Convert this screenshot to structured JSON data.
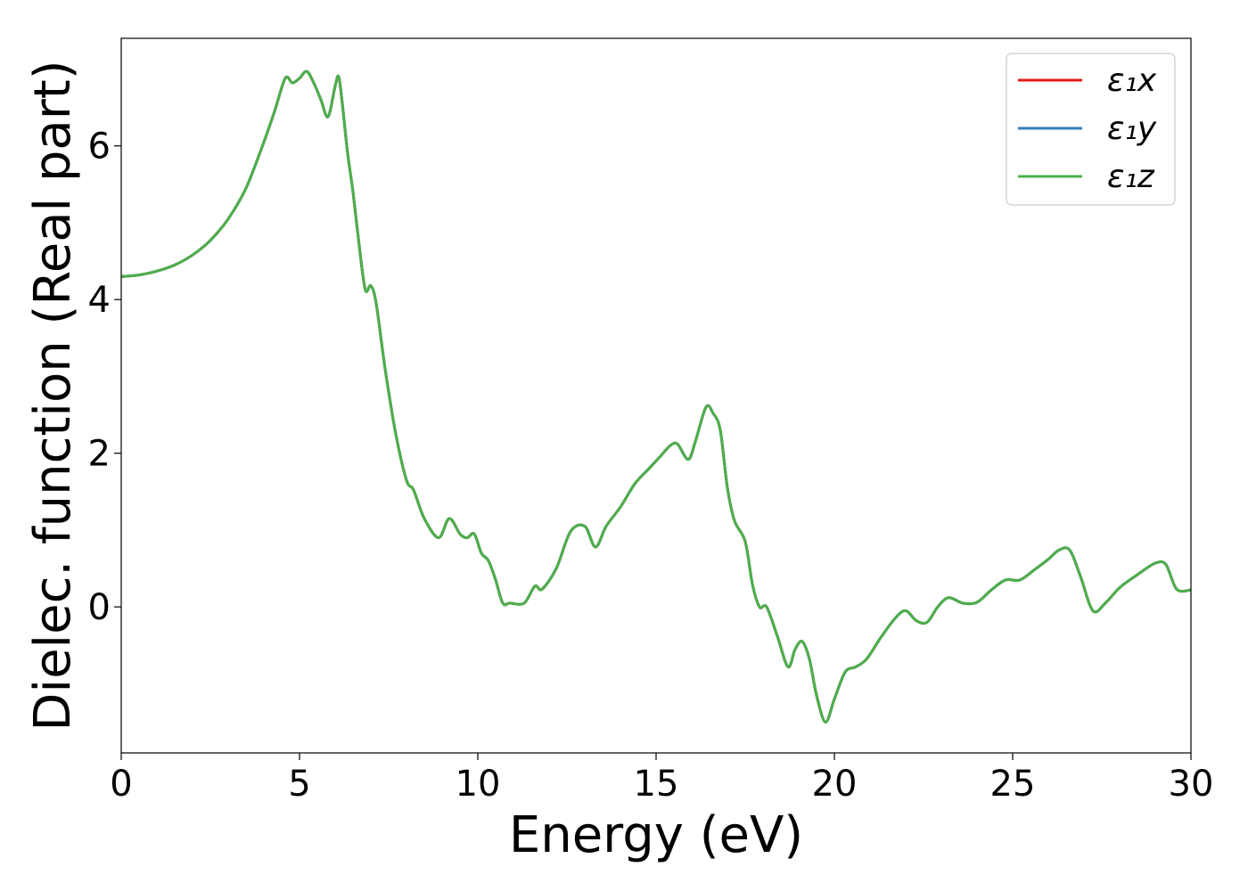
{
  "chart_data": {
    "type": "line",
    "title": "",
    "xlabel": "Energy (eV)",
    "ylabel": "Dielec. function (Real part)",
    "xlim": [
      0,
      30
    ],
    "ylim": [
      -1.9,
      7.4
    ],
    "xticks": [
      0,
      5,
      10,
      15,
      20,
      25,
      30
    ],
    "xtick_labels": [
      "0",
      "5",
      "10",
      "15",
      "20",
      "25",
      "30"
    ],
    "yticks": [
      0,
      2,
      4,
      6
    ],
    "ytick_labels": [
      "0",
      "2",
      "4",
      "6"
    ],
    "grid": false,
    "legend_position": "top-right",
    "series": [
      {
        "legend": "ε₁x",
        "color": "#e41a1c",
        "values_ref": "shared"
      },
      {
        "legend": "ε₁y",
        "color": "#377eb8",
        "values_ref": "shared"
      },
      {
        "legend": "ε₁z",
        "color": "#4daf4a",
        "values_ref": "shared"
      }
    ],
    "x": [
      0,
      0.5,
      1,
      1.5,
      2,
      2.5,
      3,
      3.5,
      4,
      4.3,
      4.6,
      4.8,
      5.0,
      5.2,
      5.4,
      5.6,
      5.8,
      6.0,
      6.1,
      6.2,
      6.35,
      6.5,
      6.7,
      6.85,
      7.0,
      7.15,
      7.4,
      7.7,
      8.0,
      8.2,
      8.5,
      8.9,
      9.2,
      9.5,
      9.7,
      9.9,
      10.1,
      10.3,
      10.5,
      10.7,
      10.9,
      11.3,
      11.6,
      11.8,
      12.2,
      12.6,
      13.0,
      13.3,
      13.6,
      14.0,
      14.4,
      14.8,
      15.1,
      15.4,
      15.6,
      15.9,
      16.1,
      16.4,
      16.6,
      16.8,
      17.0,
      17.2,
      17.5,
      17.7,
      17.9,
      18.1,
      18.4,
      18.7,
      18.9,
      19.1,
      19.3,
      19.5,
      19.75,
      20.0,
      20.3,
      20.6,
      20.9,
      21.3,
      21.7,
      22.0,
      22.3,
      22.6,
      22.9,
      23.2,
      23.6,
      24.0,
      24.4,
      24.8,
      25.2,
      25.6,
      26.0,
      26.3,
      26.6,
      26.9,
      27.25,
      27.6,
      28.0,
      28.5,
      29.0,
      29.3,
      29.6,
      30.0
    ],
    "values": [
      4.3,
      4.32,
      4.37,
      4.45,
      4.58,
      4.77,
      5.05,
      5.45,
      6.05,
      6.45,
      6.88,
      6.82,
      6.88,
      6.97,
      6.82,
      6.6,
      6.38,
      6.78,
      6.9,
      6.55,
      5.9,
      5.4,
      4.6,
      4.12,
      4.18,
      3.95,
      3.1,
      2.25,
      1.65,
      1.52,
      1.15,
      0.9,
      1.15,
      0.95,
      0.9,
      0.95,
      0.7,
      0.6,
      0.35,
      0.05,
      0.05,
      0.05,
      0.27,
      0.23,
      0.5,
      0.98,
      1.05,
      0.78,
      1.05,
      1.3,
      1.6,
      1.8,
      1.95,
      2.1,
      2.12,
      1.92,
      2.15,
      2.6,
      2.52,
      2.3,
      1.55,
      1.12,
      0.85,
      0.3,
      0.0,
      0.0,
      -0.38,
      -0.78,
      -0.55,
      -0.45,
      -0.68,
      -1.15,
      -1.5,
      -1.2,
      -0.85,
      -0.78,
      -0.68,
      -0.4,
      -0.15,
      -0.05,
      -0.18,
      -0.2,
      0.0,
      0.12,
      0.05,
      0.06,
      0.22,
      0.35,
      0.35,
      0.48,
      0.62,
      0.74,
      0.74,
      0.4,
      -0.05,
      0.05,
      0.25,
      0.42,
      0.57,
      0.55,
      0.23,
      0.22
    ]
  }
}
